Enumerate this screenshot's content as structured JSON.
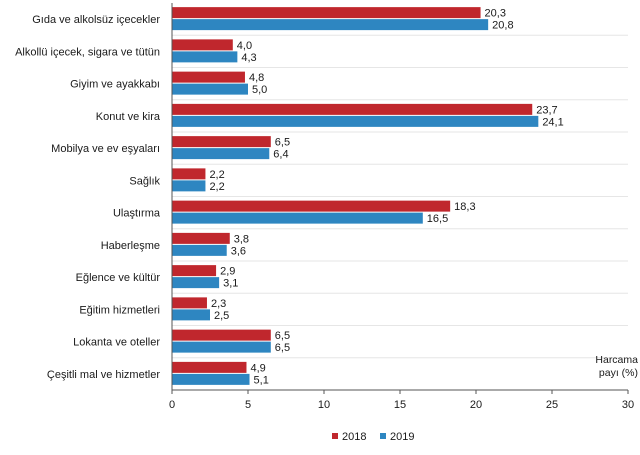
{
  "chart_data": {
    "type": "bar",
    "orientation": "horizontal",
    "categories": [
      "Gıda ve alkolsüz içecekler",
      "Alkollü içecek, sigara ve tütün",
      "Giyim ve ayakkabı",
      "Konut ve kira",
      "Mobilya ve ev eşyaları",
      "Sağlık",
      "Ulaştırma",
      "Haberleşme",
      "Eğlence ve kültür",
      "Eğitim hizmetleri",
      "Lokanta ve oteller",
      "Çeşitli mal ve hizmetler"
    ],
    "series": [
      {
        "name": "2018",
        "color": "#c0272d",
        "values": [
          20.3,
          4.0,
          4.8,
          23.7,
          6.5,
          2.2,
          18.3,
          3.8,
          2.9,
          2.3,
          6.5,
          4.9
        ],
        "labels": [
          "20,3",
          "4,0",
          "4,8",
          "23,7",
          "6,5",
          "2,2",
          "18,3",
          "3,8",
          "2,9",
          "2,3",
          "6,5",
          "4,9"
        ]
      },
      {
        "name": "2019",
        "color": "#2e86c1",
        "values": [
          20.8,
          4.3,
          5.0,
          24.1,
          6.4,
          2.2,
          16.5,
          3.6,
          3.1,
          2.5,
          6.5,
          5.1
        ],
        "labels": [
          "20,8",
          "4,3",
          "5,0",
          "24,1",
          "6,4",
          "2,2",
          "16,5",
          "3,6",
          "3,1",
          "2,5",
          "6,5",
          "5,1"
        ]
      }
    ],
    "xlim": [
      0,
      30
    ],
    "xticks": [
      0,
      5,
      10,
      15,
      20,
      25,
      30
    ],
    "xlabel_lines": [
      "Harcama",
      "payı (%)"
    ],
    "legend_position": "bottom-center",
    "grid": false
  }
}
